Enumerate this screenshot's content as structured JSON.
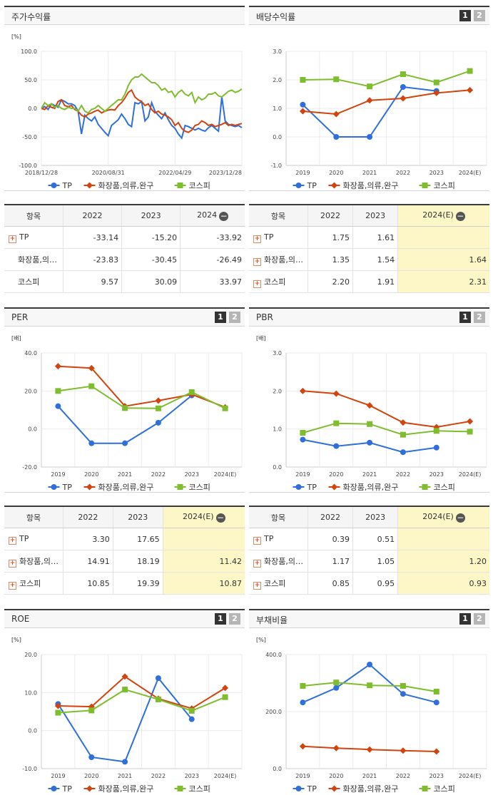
{
  "colors": {
    "tp": "#2f6fdb",
    "cosmetics": "#d2430e",
    "kospi": "#7ebd2d"
  },
  "series_names": [
    "TP",
    "화장품,의류,완구",
    "코스피"
  ],
  "panels": {
    "stock_return": {
      "title": "주가수익률"
    },
    "dividend": {
      "title": "배당수익률",
      "btn1": "1",
      "btn2": "2"
    },
    "per": {
      "title": "PER",
      "btn1": "1",
      "btn2": "2"
    },
    "pbr": {
      "title": "PBR",
      "btn1": "1",
      "btn2": "2"
    },
    "roe": {
      "title": "ROE",
      "btn1": "1",
      "btn2": "2"
    },
    "debt": {
      "title": "부채비율",
      "btn1": "1",
      "btn2": "2"
    }
  },
  "tables": {
    "stock_return": {
      "headers": [
        "항목",
        "2022",
        "2023",
        "2024"
      ],
      "rows": [
        {
          "name": "TP",
          "plus": true,
          "values": [
            "-33.14",
            "-15.20",
            "-33.92"
          ]
        },
        {
          "name": "화장품,의…",
          "plus": false,
          "values": [
            "-23.83",
            "-30.45",
            "-26.49"
          ]
        },
        {
          "name": "코스피",
          "plus": false,
          "values": [
            "9.57",
            "30.09",
            "33.97"
          ]
        }
      ]
    },
    "dividend": {
      "headers": [
        "항목",
        "2022",
        "2023",
        "2024(E)"
      ],
      "rows": [
        {
          "name": "TP",
          "plus": true,
          "values": [
            "1.75",
            "1.61",
            ""
          ]
        },
        {
          "name": "화장품,의…",
          "plus": true,
          "values": [
            "1.35",
            "1.54",
            "1.64"
          ]
        },
        {
          "name": "코스피",
          "plus": true,
          "values": [
            "2.20",
            "1.91",
            "2.31"
          ]
        }
      ]
    },
    "per": {
      "headers": [
        "항목",
        "2022",
        "2023",
        "2024(E)"
      ],
      "rows": [
        {
          "name": "TP",
          "plus": true,
          "values": [
            "3.30",
            "17.65",
            ""
          ]
        },
        {
          "name": "화장품,의…",
          "plus": true,
          "values": [
            "14.91",
            "18.19",
            "11.42"
          ]
        },
        {
          "name": "코스피",
          "plus": true,
          "values": [
            "10.85",
            "19.39",
            "10.87"
          ]
        }
      ]
    },
    "pbr": {
      "headers": [
        "항목",
        "2022",
        "2023",
        "2024(E)"
      ],
      "rows": [
        {
          "name": "TP",
          "plus": true,
          "values": [
            "0.39",
            "0.51",
            ""
          ]
        },
        {
          "name": "화장품,의…",
          "plus": true,
          "values": [
            "1.17",
            "1.05",
            "1.20"
          ]
        },
        {
          "name": "코스피",
          "plus": true,
          "values": [
            "0.85",
            "0.95",
            "0.93"
          ]
        }
      ]
    }
  },
  "chart_data": [
    {
      "id": "stock_return",
      "type": "line",
      "unit": "[%]",
      "ylim": [
        -100,
        100
      ],
      "yticks": [
        "100.0",
        "50.0",
        "0.0",
        "-50.0",
        "-100.0"
      ],
      "xtick_labels": [
        "2018/12/28",
        "2020/08/31",
        "2022/04/29",
        "2023/12/28"
      ],
      "x_count": 61,
      "series": [
        {
          "name": "TP",
          "values": [
            0,
            3,
            -2,
            8,
            5,
            2,
            15,
            12,
            8,
            8,
            5,
            -5,
            -45,
            -12,
            -18,
            -22,
            -15,
            -28,
            -35,
            -42,
            -48,
            -30,
            -25,
            -20,
            -10,
            -18,
            -28,
            -32,
            10,
            8,
            12,
            -22,
            -15,
            10,
            -5,
            -12,
            -18,
            -8,
            -20,
            -30,
            -35,
            -45,
            -52,
            -30,
            -32,
            -35,
            -38,
            -35,
            -38,
            -40,
            -34,
            -30,
            -35,
            -40,
            20,
            -22,
            -28,
            -30,
            -32,
            -30,
            -33.92
          ]
        },
        {
          "name": "화장품,의류,완구",
          "values": [
            0,
            -2,
            5,
            2,
            0,
            12,
            15,
            5,
            3,
            5,
            -2,
            -5,
            -12,
            -15,
            -10,
            -8,
            -5,
            -3,
            -8,
            -5,
            -3,
            -2,
            -3,
            5,
            10,
            18,
            28,
            32,
            20,
            15,
            12,
            5,
            8,
            -2,
            -8,
            -5,
            -10,
            -12,
            -15,
            -20,
            -30,
            -25,
            -35,
            -40,
            -42,
            -38,
            -30,
            -28,
            -22,
            -25,
            -30,
            -28,
            -32,
            -30,
            -28,
            -25,
            -30,
            -28,
            -30,
            -28,
            -26.49
          ]
        },
        {
          "name": "코스피",
          "values": [
            0,
            10,
            5,
            8,
            2,
            5,
            0,
            -2,
            2,
            0,
            0,
            -5,
            5,
            -5,
            -8,
            -2,
            0,
            5,
            0,
            -5,
            0,
            5,
            10,
            15,
            15,
            25,
            40,
            50,
            55,
            55,
            60,
            55,
            50,
            45,
            45,
            40,
            32,
            35,
            28,
            30,
            20,
            28,
            32,
            25,
            22,
            28,
            10,
            20,
            15,
            18,
            25,
            25,
            28,
            22,
            20,
            25,
            30,
            32,
            28,
            30,
            33.97
          ]
        }
      ]
    },
    {
      "id": "dividend",
      "type": "line",
      "unit": "",
      "ylim": [
        -1,
        3
      ],
      "yticks": [
        "3.0",
        "2.0",
        "1.0",
        "0.0",
        "-1.0"
      ],
      "categories": [
        "2019",
        "2020",
        "2021",
        "2022",
        "2023",
        "2024(E)"
      ],
      "series": [
        {
          "name": "TP",
          "values": [
            1.13,
            0.0,
            0.0,
            1.75,
            1.61,
            null
          ]
        },
        {
          "name": "화장품,의류,완구",
          "values": [
            0.9,
            0.8,
            1.28,
            1.35,
            1.54,
            1.64
          ]
        },
        {
          "name": "코스피",
          "values": [
            2.0,
            2.02,
            1.77,
            2.2,
            1.91,
            2.31
          ]
        }
      ]
    },
    {
      "id": "per",
      "type": "line",
      "unit": "[배]",
      "ylim": [
        -20,
        40
      ],
      "yticks": [
        "40.0",
        "20.0",
        "0.0",
        "-20.0"
      ],
      "categories": [
        "2019",
        "2020",
        "2021",
        "2022",
        "2023",
        "2024(E)"
      ],
      "series": [
        {
          "name": "TP",
          "values": [
            12.0,
            -7.5,
            -7.5,
            3.3,
            17.65,
            null
          ]
        },
        {
          "name": "화장품,의류,완구",
          "values": [
            33.0,
            32.0,
            12.0,
            14.91,
            18.19,
            11.42
          ]
        },
        {
          "name": "코스피",
          "values": [
            20.0,
            22.5,
            11.0,
            10.85,
            19.39,
            10.87
          ]
        }
      ]
    },
    {
      "id": "pbr",
      "type": "line",
      "unit": "[배]",
      "ylim": [
        0,
        3
      ],
      "yticks": [
        "3.0",
        "2.0",
        "1.0",
        "0.0"
      ],
      "categories": [
        "2019",
        "2020",
        "2021",
        "2022",
        "2023",
        "2024(E)"
      ],
      "series": [
        {
          "name": "TP",
          "values": [
            0.72,
            0.55,
            0.64,
            0.39,
            0.51,
            null
          ]
        },
        {
          "name": "화장품,의류,완구",
          "values": [
            2.0,
            1.93,
            1.62,
            1.17,
            1.05,
            1.2
          ]
        },
        {
          "name": "코스피",
          "values": [
            0.9,
            1.15,
            1.13,
            0.85,
            0.95,
            0.93
          ]
        }
      ]
    },
    {
      "id": "roe",
      "type": "line",
      "unit": "[%]",
      "ylim": [
        -10,
        20
      ],
      "yticks": [
        "20.0",
        "10.0",
        "0.0",
        "-10.0"
      ],
      "categories": [
        "2019",
        "2020",
        "2021",
        "2022",
        "2023",
        "2024(E)"
      ],
      "series": [
        {
          "name": "TP",
          "values": [
            7.0,
            -7.0,
            -8.2,
            13.8,
            3.0,
            null
          ]
        },
        {
          "name": "화장품,의류,완구",
          "values": [
            6.5,
            6.3,
            14.2,
            8.4,
            5.8,
            11.2
          ]
        },
        {
          "name": "코스피",
          "values": [
            4.7,
            5.3,
            10.8,
            8.2,
            5.2,
            8.8
          ]
        }
      ]
    },
    {
      "id": "debt",
      "type": "line",
      "unit": "[%]",
      "ylim": [
        0,
        400
      ],
      "yticks": [
        "400.0",
        "200.0",
        "0.0"
      ],
      "categories": [
        "2019",
        "2020",
        "2021",
        "2022",
        "2023",
        "2024(E)"
      ],
      "series": [
        {
          "name": "TP",
          "values": [
            232,
            283,
            365,
            262,
            232,
            null
          ]
        },
        {
          "name": "화장품,의류,완구",
          "values": [
            78,
            72,
            67,
            63,
            60,
            null
          ]
        },
        {
          "name": "코스피",
          "values": [
            290,
            302,
            292,
            290,
            270,
            null
          ]
        }
      ]
    }
  ]
}
